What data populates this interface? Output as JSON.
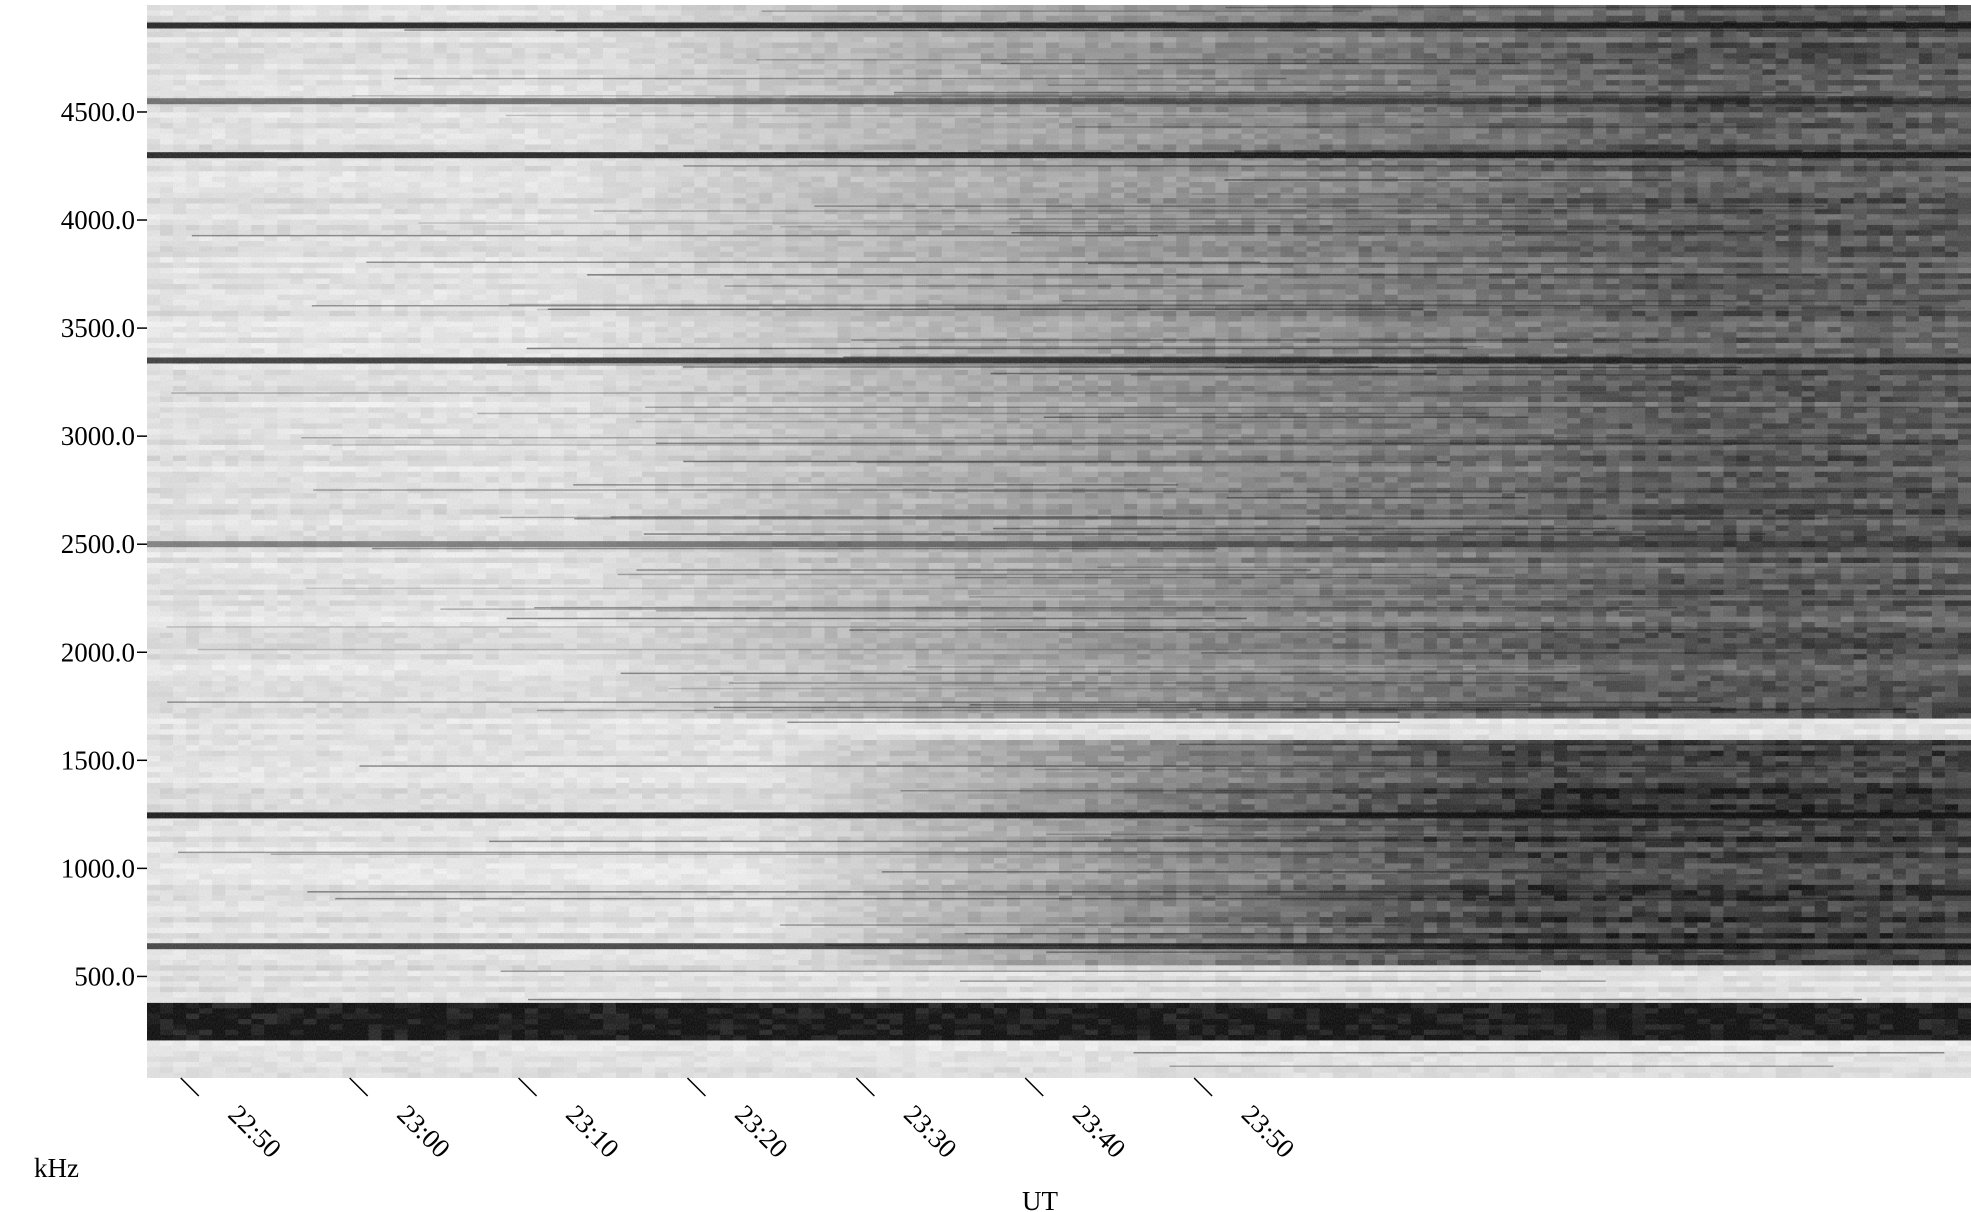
{
  "chart_data": {
    "type": "heatmap",
    "title": "",
    "xlabel": "UT",
    "ylabel": "kHz",
    "colormap": "grayscale (white = low intensity, black = high intensity)",
    "grid": false,
    "x_ticks": [
      "22:50",
      "23:00",
      "23:10",
      "23:20",
      "23:30",
      "23:40",
      "23:50"
    ],
    "x_range": [
      "22:48",
      "24:36"
    ],
    "y_ticks": [
      500.0,
      1000.0,
      1500.0,
      2000.0,
      2500.0,
      3000.0,
      3500.0,
      4000.0,
      4500.0
    ],
    "y_tick_labels": [
      "500.0",
      "1000.0",
      "1500.0",
      "2000.0",
      "2500.0",
      "3000.0",
      "3500.0",
      "4000.0",
      "4500.0"
    ],
    "ylim": [
      30,
      4995
    ],
    "features": [
      {
        "kind": "band",
        "f_low": 200,
        "f_high": 370,
        "t_start": "22:48",
        "t_end": "24:36",
        "intensity": 1.0
      },
      {
        "kind": "region",
        "f_low": 550,
        "f_high": 1600,
        "t_start": "23:20",
        "t_end": "24:36",
        "onset": "23:20",
        "saturation": "24:10",
        "intensity": 0.95
      },
      {
        "kind": "region",
        "f_low": 1700,
        "f_high": 4995,
        "t_start": "23:00",
        "t_end": "24:36",
        "onset": "23:05",
        "saturation": "24:20",
        "intensity": 0.8
      },
      {
        "kind": "line",
        "f": 1245,
        "intensity": 0.9
      },
      {
        "kind": "line",
        "f": 4300,
        "intensity": 0.85
      },
      {
        "kind": "line",
        "f": 4900,
        "intensity": 0.85
      },
      {
        "kind": "line",
        "f": 3350,
        "intensity": 0.75
      },
      {
        "kind": "line",
        "f": 640,
        "intensity": 0.7
      },
      {
        "kind": "line",
        "f": 4550,
        "intensity": 0.5
      },
      {
        "kind": "line",
        "f": 2500,
        "intensity": 0.45
      }
    ]
  }
}
